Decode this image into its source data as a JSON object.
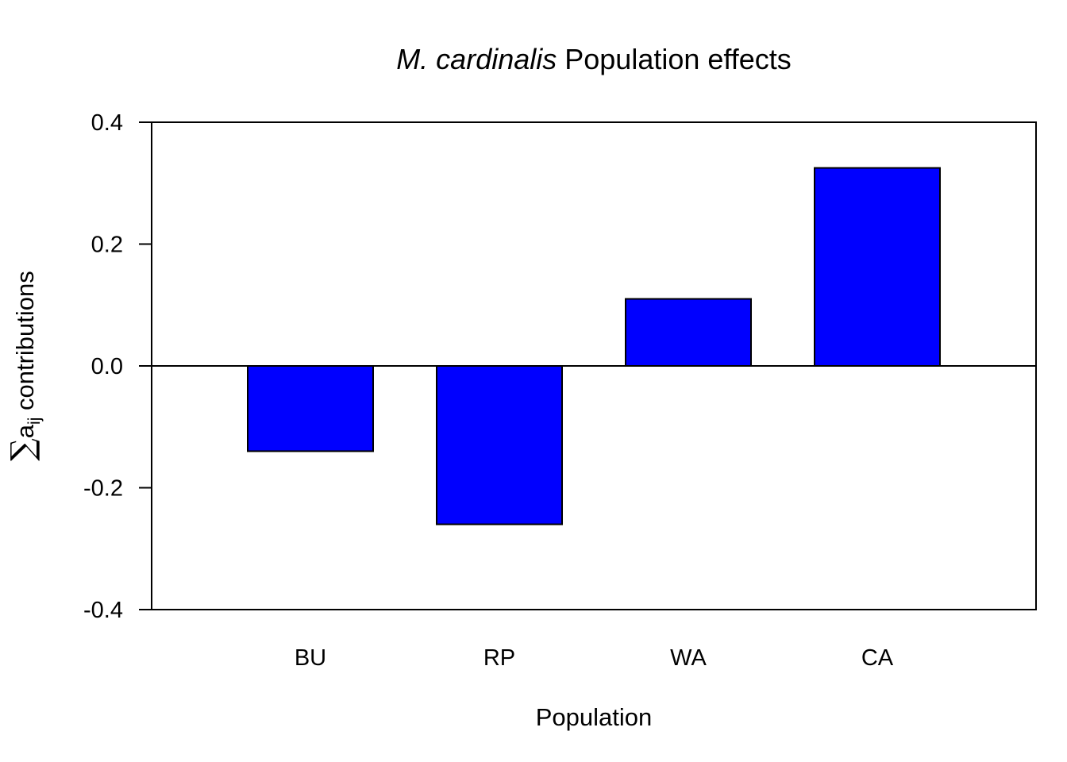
{
  "chart_data": {
    "type": "bar",
    "title_italic": "M. cardinalis",
    "title_rest": " Population effects",
    "xlabel": "Population",
    "ylabel_symbol": "∑",
    "ylabel_var": "a",
    "ylabel_sub": "ij",
    "ylabel_rest": " contributions",
    "categories": [
      "BU",
      "RP",
      "WA",
      "CA"
    ],
    "values": [
      -0.14,
      -0.26,
      0.11,
      0.325
    ],
    "ylim": [
      -0.4,
      0.4
    ],
    "yticks": [
      -0.4,
      -0.2,
      0.0,
      0.2,
      0.4
    ],
    "ytick_labels": [
      "-0.4",
      "-0.2",
      "0.0",
      "0.2",
      "0.4"
    ],
    "bar_color": "#0000ff",
    "baseline": 0,
    "grid": false,
    "legend": "none"
  }
}
